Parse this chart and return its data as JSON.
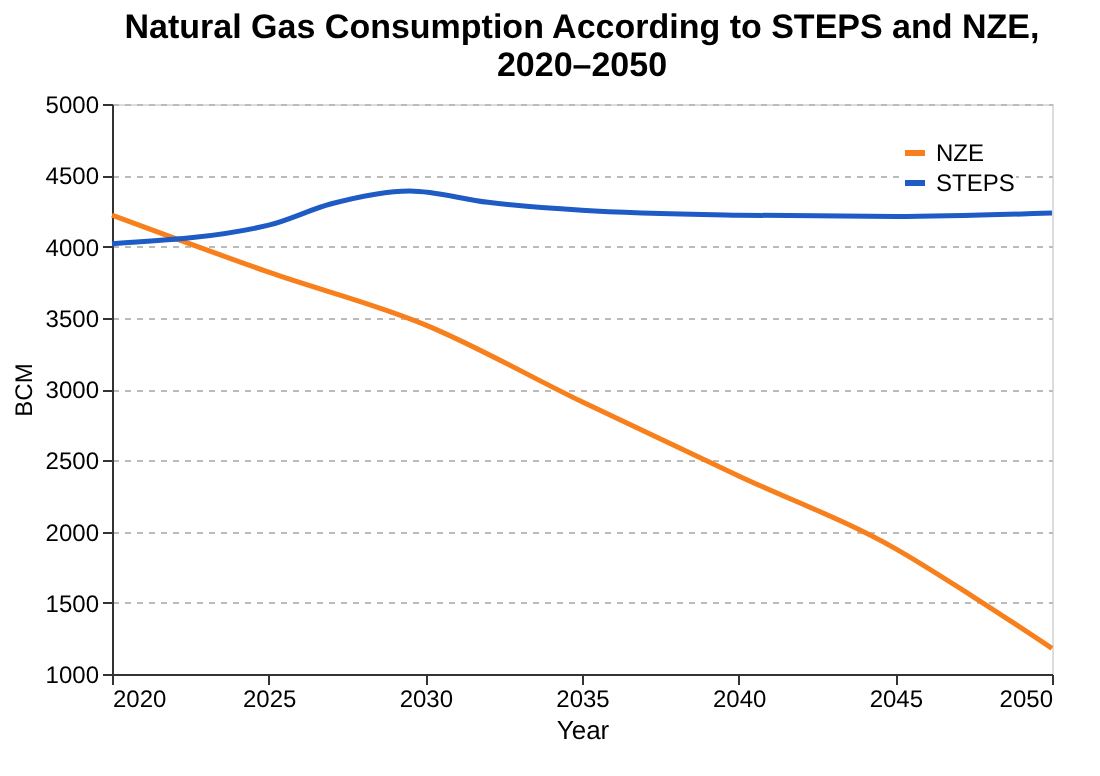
{
  "chart_data": {
    "type": "line",
    "title": "Natural Gas Consumption According to STEPS and NZE, 2020–2050",
    "xlabel": "Year",
    "ylabel": "BCM",
    "series": [
      {
        "name": "NZE",
        "color": "#f7801c",
        "x": [
          2020,
          2025,
          2030,
          2035,
          2040,
          2045,
          2047.5,
          2050
        ],
        "values": [
          4220,
          3820,
          3450,
          2910,
          2390,
          1880,
          1540,
          1180
        ]
      },
      {
        "name": "STEPS",
        "color": "#1f5bc4",
        "x": [
          2020,
          2025,
          2027,
          2029.5,
          2032,
          2035,
          2040,
          2045,
          2050
        ],
        "values": [
          4020,
          4150,
          4300,
          4390,
          4310,
          4255,
          4220,
          4210,
          4235
        ]
      }
    ],
    "xlim": [
      2020,
      2050
    ],
    "xticks": [
      2020,
      2025,
      2030,
      2035,
      2040,
      2045,
      2050
    ],
    "ylim": [
      1000,
      5000
    ],
    "yticks": [
      1000,
      1500,
      2000,
      2500,
      3000,
      3500,
      4000,
      4500,
      5000
    ],
    "grid": "y",
    "legend": "top right",
    "marker": "none",
    "line_style": "solid"
  }
}
